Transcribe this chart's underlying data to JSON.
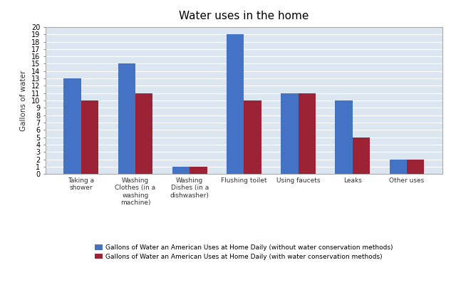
{
  "title": "Water uses in the home",
  "ylabel": "Gallons of water",
  "categories": [
    "Taking a\nshower",
    "Washing\nClothes (in a\nwashing\nmachine)",
    "Washing\nDishes (in a\ndishwasher)",
    "Flushing toilet",
    "Using faucets",
    "Leaks",
    "Other uses"
  ],
  "without_conservation": [
    13,
    15,
    1,
    19,
    11,
    10,
    2
  ],
  "with_conservation": [
    10,
    11,
    1,
    10,
    11,
    5,
    2
  ],
  "bar_color_without": "#4472C4",
  "bar_color_with": "#9B2335",
  "legend_without": "Gallons of Water an American Uses at Home Daily (without water conservation methods)",
  "legend_with": "Gallons of Water an American Uses at Home Daily (with water conservation methods)",
  "ylim": [
    0,
    20
  ],
  "yticks": [
    0,
    1,
    2,
    3,
    4,
    5,
    6,
    7,
    8,
    9,
    10,
    11,
    12,
    13,
    14,
    15,
    16,
    17,
    18,
    19,
    20
  ],
  "fig_bg": "#ffffff",
  "plot_bg": "#dce6f1",
  "border_color": "#aaaaaa"
}
